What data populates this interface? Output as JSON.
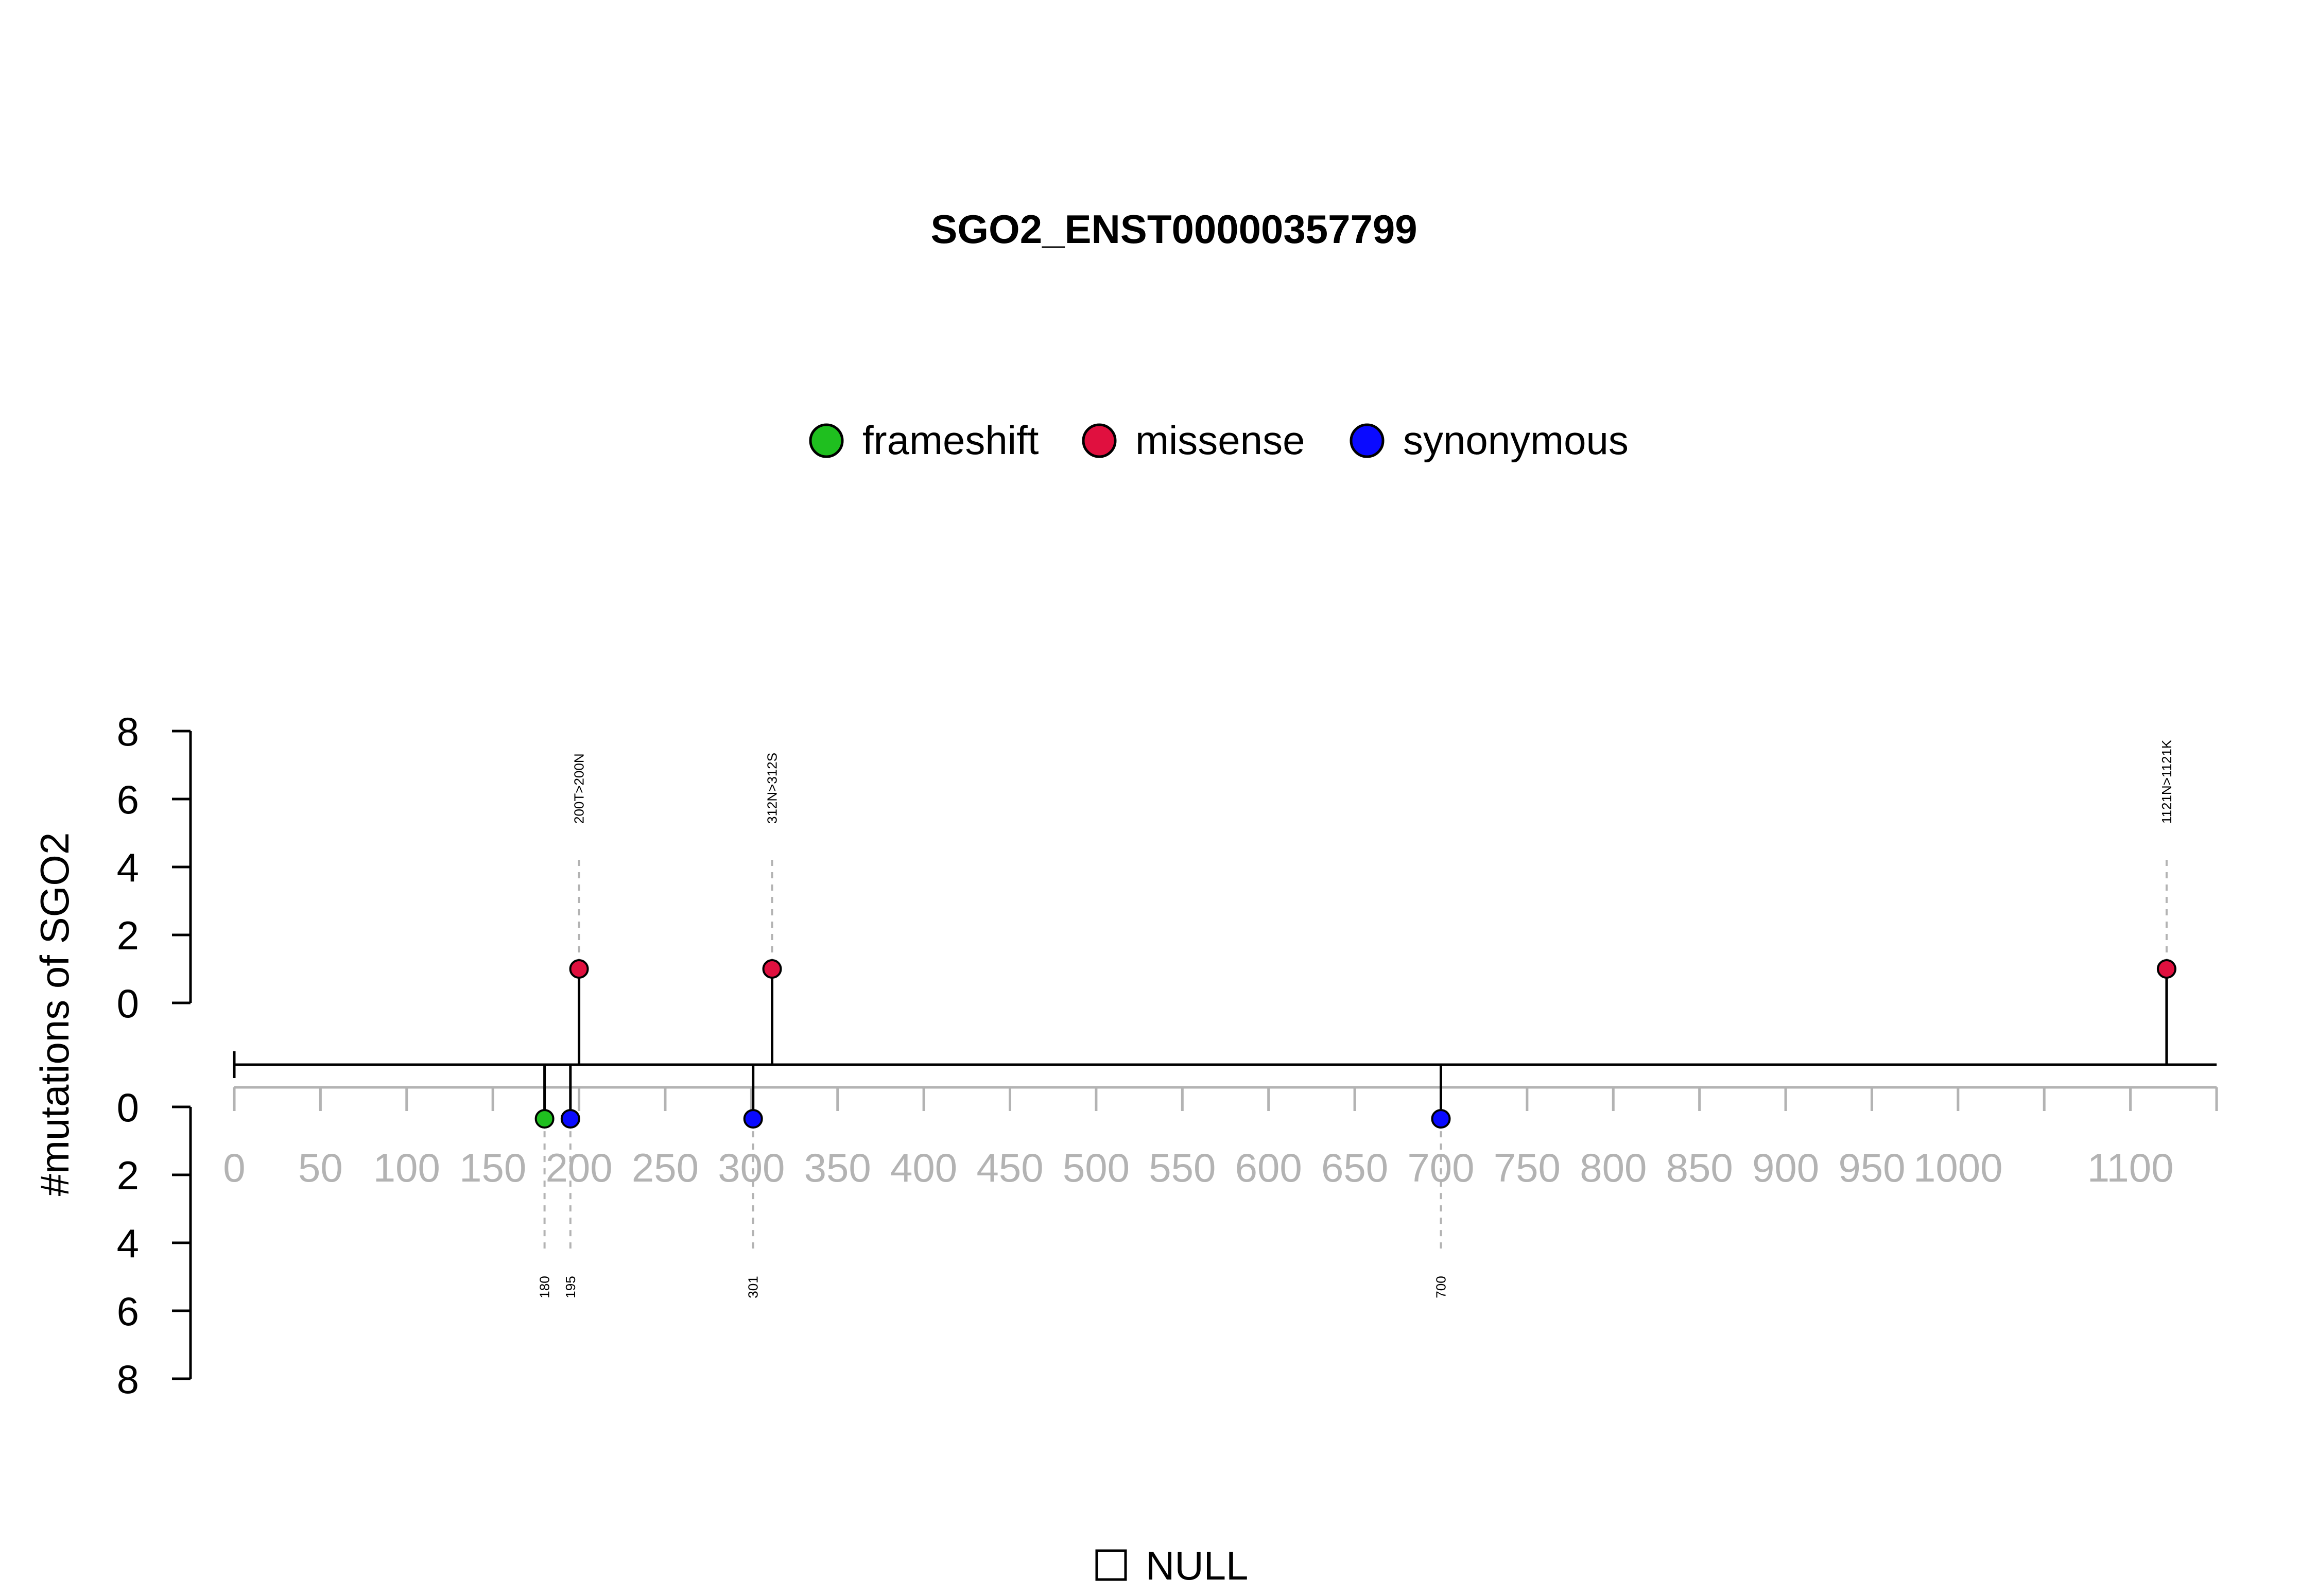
{
  "chart_data": {
    "type": "lollipop",
    "title": "SGO2_ENST00000357799",
    "ylabel": "#mutations of SGO2",
    "xlim": [
      0,
      1150
    ],
    "x_ticks": [
      0,
      50,
      100,
      150,
      200,
      250,
      300,
      350,
      400,
      450,
      500,
      550,
      600,
      650,
      700,
      750,
      800,
      850,
      900,
      950,
      1000,
      1050,
      1100,
      1150
    ],
    "x_tick_labels": [
      "0",
      "50",
      "100",
      "150",
      "200",
      "250",
      "300",
      "350",
      "400",
      "450",
      "500",
      "550",
      "600",
      "650",
      "700",
      "750",
      "800",
      "850",
      "900",
      "950",
      "1000",
      "",
      "1100",
      ""
    ],
    "y_ticks": [
      0,
      2,
      4,
      6,
      8
    ],
    "y_tick_labels": [
      "0",
      "2",
      "4",
      "6",
      "8"
    ],
    "legend": {
      "placement": "top",
      "items": [
        {
          "label": "frameshift",
          "color": "#1fbf1f"
        },
        {
          "label": "missense",
          "color": "#e0103f"
        },
        {
          "label": "synonymous",
          "color": "#0a0aff"
        }
      ]
    },
    "upper_mutations": [
      {
        "position": 200,
        "count": 1,
        "type": "missense",
        "label": "200T>200N"
      },
      {
        "position": 312,
        "count": 1,
        "type": "missense",
        "label": "312N>312S"
      },
      {
        "position": 1121,
        "count": 1,
        "type": "missense",
        "label": "1121N>1121K"
      }
    ],
    "lower_mutations": [
      {
        "position": 180,
        "count": 1,
        "type": "frameshift",
        "label": "180"
      },
      {
        "position": 195,
        "count": 1,
        "type": "synonymous",
        "label": "195"
      },
      {
        "position": 301,
        "count": 1,
        "type": "synonymous",
        "label": "301"
      },
      {
        "position": 700,
        "count": 1,
        "type": "synonymous",
        "label": "700"
      }
    ],
    "domain_legend": [
      {
        "label": "NULL",
        "color": "#ffffff"
      }
    ]
  }
}
